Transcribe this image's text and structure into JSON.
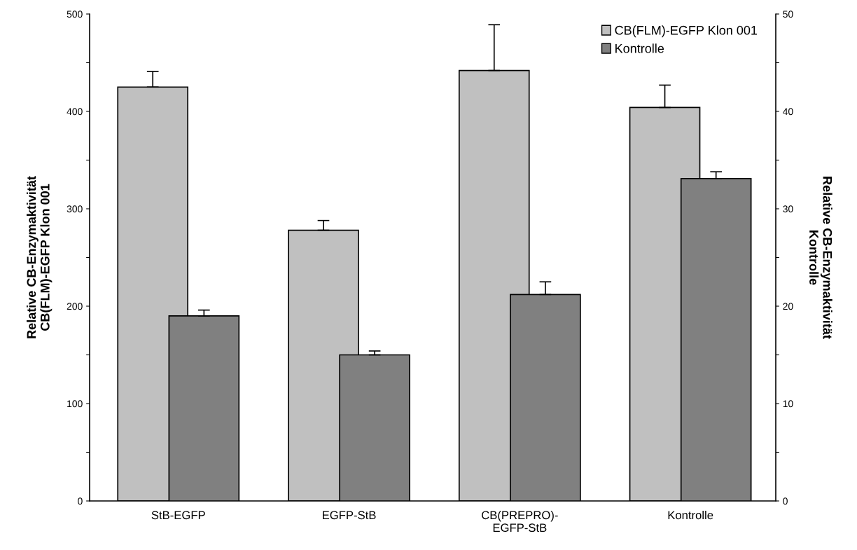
{
  "chart_data": {
    "type": "bar",
    "ylabel": "Relative CB-Enzymaktivität\nCB(FLM)-EGFP Klon 001",
    "y2label": "Relative CB-Enzymaktivität\nKontrolle",
    "categories": [
      "StB-EGFP",
      "EGFP-StB",
      "CB(PREPRO)-\nEGFP-StB",
      "Kontrolle"
    ],
    "series": [
      {
        "name": "CB(FLM)-EGFP Klon 001",
        "color": "#c0c0c0",
        "values": [
          425,
          278,
          442,
          404
        ],
        "errors": [
          [
            425,
            441
          ],
          [
            278,
            288
          ],
          [
            442,
            489
          ],
          [
            404,
            427
          ]
        ]
      },
      {
        "name": "Kontrolle",
        "color": "#808080",
        "axis": "y2",
        "values": [
          19.0,
          15.0,
          21.2,
          33.1
        ],
        "errors": [
          [
            19.0,
            19.6
          ],
          [
            15.0,
            15.4
          ],
          [
            21.2,
            22.5
          ],
          [
            33.1,
            33.8
          ]
        ]
      }
    ],
    "ylim": [
      0,
      500
    ],
    "yticks": [
      0,
      {
        "value": 50,
        "label": null
      },
      100,
      {
        "value": 150,
        "label": null
      },
      200,
      {
        "value": 250,
        "label": null
      },
      300,
      {
        "value": 350,
        "label": null
      },
      400,
      {
        "value": 450,
        "label": null
      },
      500
    ],
    "y2lim": [
      0,
      50
    ],
    "y2ticks": [
      0,
      {
        "value": 5,
        "label": null
      },
      10,
      {
        "value": 15,
        "label": null
      },
      20,
      {
        "value": 25,
        "label": null
      },
      30,
      {
        "value": 35,
        "label": null
      },
      40,
      {
        "value": 45,
        "label": null
      },
      50
    ],
    "grid": false,
    "legend": "top right"
  }
}
